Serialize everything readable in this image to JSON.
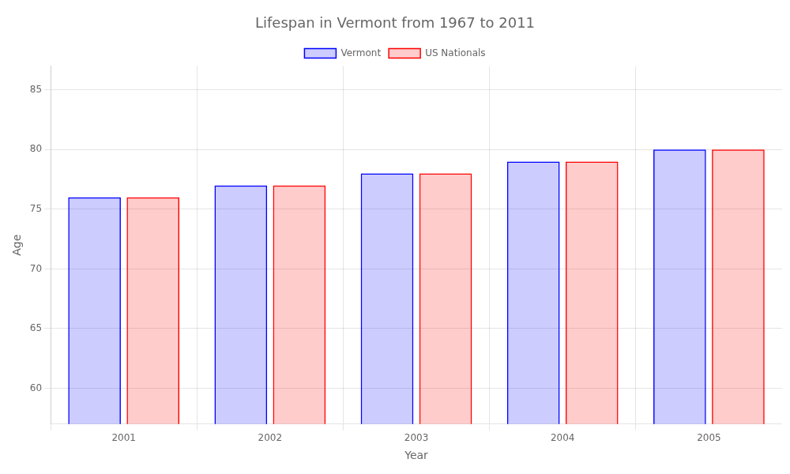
{
  "chart_data": {
    "type": "bar",
    "title": "Lifespan in Vermont from 1967 to 2011",
    "x_label": "Year",
    "y_label": "Age",
    "categories": [
      "2001",
      "2002",
      "2003",
      "2004",
      "2005"
    ],
    "series": [
      {
        "name": "Vermont",
        "color": "#0000ff",
        "values": [
          76,
          77,
          78,
          79,
          80
        ]
      },
      {
        "name": "US Nationals",
        "color": "#ff0000",
        "values": [
          76,
          77,
          78,
          79,
          80
        ]
      }
    ],
    "ylim": [
      57,
      87
    ],
    "yticks": [
      60,
      65,
      70,
      75,
      80,
      85
    ],
    "grid": true,
    "legend": "top"
  }
}
